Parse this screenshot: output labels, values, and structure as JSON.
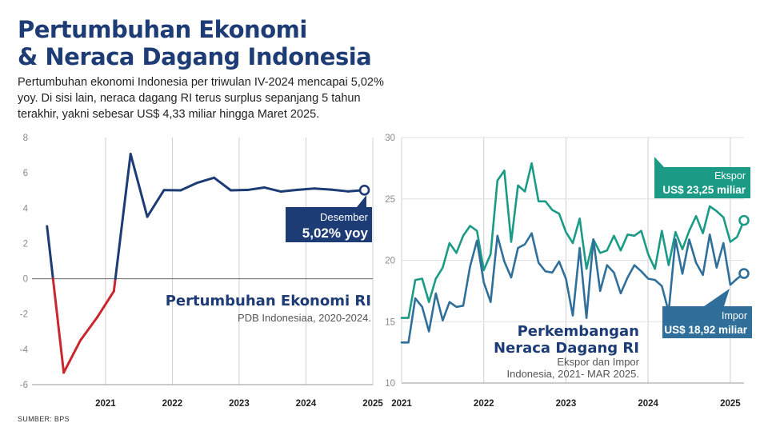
{
  "header": {
    "title_line1": "Pertumbuhan Ekonomi",
    "title_line2": "& Neraca Dagang Indonesia",
    "subtitle": "Pertumbuhan ekonomi Indonesia per triwulan IV-2024 mencapai 5,02% yoy. Di sisi lain, neraca dagang RI terus surplus sepanjang 5 tahun terakhir, yakni sebesar US$ 4,33 miliar hingga Maret 2025."
  },
  "source": "SUMBER: BPS",
  "colors": {
    "navy": "#1d3b74",
    "red": "#c8272d",
    "teal": "#1b9a86",
    "blue": "#2f6f9a",
    "grid": "#cfcfcf"
  },
  "chart_data": [
    {
      "type": "line",
      "title": "Pertumbuhan Ekonomi RI",
      "subtitle": "PDB Indonesiaa, 2020-2024.",
      "ylim": [
        -6,
        8
      ],
      "y_ticks": [
        -6,
        -4,
        -2,
        0,
        2,
        4,
        6,
        8
      ],
      "x_ticks": [
        "2021",
        "2022",
        "2023",
        "2024",
        "2025"
      ],
      "x_tick_positions": [
        2021,
        2022,
        2023,
        2024,
        2025
      ],
      "xlim": [
        2019.9,
        2025.0
      ],
      "series": [
        {
          "name": "Pertumbuhan Ekonomi RI",
          "x": [
            2020.125,
            2020.375,
            2020.625,
            2020.875,
            2021.125,
            2021.375,
            2021.625,
            2021.875,
            2022.125,
            2022.375,
            2022.625,
            2022.875,
            2023.125,
            2023.375,
            2023.625,
            2023.875,
            2024.125,
            2024.375,
            2024.625,
            2024.875
          ],
          "values": [
            2.97,
            -5.32,
            -3.49,
            -2.19,
            -0.71,
            7.07,
            3.51,
            5.02,
            5.01,
            5.44,
            5.72,
            5.01,
            5.03,
            5.17,
            4.94,
            5.04,
            5.11,
            5.05,
            4.95,
            5.02
          ]
        }
      ],
      "annotation": {
        "label": "Desember",
        "value": "5,02% yoy"
      }
    },
    {
      "type": "line",
      "title_line1": "Perkembangan",
      "title_line2": "Neraca Dagang RI",
      "subtitle_line1": "Ekspor dan Impor",
      "subtitle_line2": "Indonesia, 2021- MAR 2025.",
      "ylim": [
        10,
        30
      ],
      "y_ticks": [
        10,
        15,
        20,
        25,
        30
      ],
      "x_ticks": [
        "2021",
        "2022",
        "2023",
        "2024",
        "2025"
      ],
      "x_tick_positions": [
        0,
        12,
        24,
        36,
        48
      ],
      "xlim": [
        0,
        50
      ],
      "series": [
        {
          "name": "Ekspor",
          "annotation": "US$ 23,25 miliar",
          "values": [
            15.3,
            15.3,
            18.4,
            18.5,
            16.6,
            18.5,
            19.4,
            21.4,
            20.6,
            22.0,
            22.8,
            22.4,
            19.2,
            20.5,
            26.5,
            27.3,
            21.5,
            26.1,
            25.6,
            27.9,
            24.8,
            24.8,
            24.1,
            23.8,
            22.3,
            21.4,
            23.4,
            19.3,
            21.7,
            20.6,
            20.8,
            22.0,
            20.8,
            22.1,
            22.0,
            22.4,
            20.5,
            19.3,
            22.4,
            19.6,
            22.3,
            20.9,
            22.4,
            23.6,
            22.2,
            24.4,
            24.0,
            23.5,
            21.5,
            21.9,
            23.25
          ]
        },
        {
          "name": "Impor",
          "annotation": "US$ 18,92 miliar",
          "values": [
            13.3,
            13.3,
            16.9,
            16.2,
            14.2,
            17.3,
            15.1,
            16.6,
            16.2,
            16.3,
            19.5,
            21.6,
            18.2,
            16.6,
            22.0,
            19.9,
            18.6,
            21.0,
            21.3,
            22.2,
            19.8,
            19.1,
            19.0,
            19.9,
            18.5,
            15.5,
            21.0,
            15.3,
            21.7,
            17.5,
            19.6,
            19.0,
            17.3,
            18.6,
            19.6,
            19.1,
            18.5,
            18.4,
            17.9,
            15.8,
            21.7,
            18.9,
            21.7,
            19.8,
            18.8,
            22.1,
            19.4,
            21.4,
            18.0,
            18.5,
            18.92
          ]
        }
      ]
    }
  ]
}
